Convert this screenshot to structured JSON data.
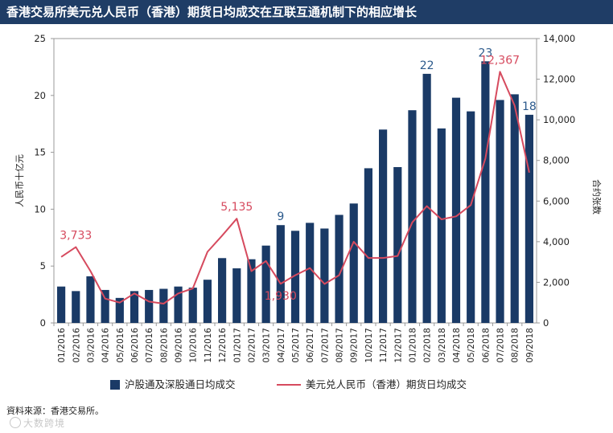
{
  "title": "香港交易所美元兑人民币（香港）期货日均成交在互联互通机制下的相应增长",
  "source_note": "資料來源：香港交易所。",
  "watermark": "大数跨境",
  "colors": {
    "title_bg": "#1f3d66",
    "bar": "#1a3a66",
    "line": "#d64a5e",
    "bar_label": "#2c5a8c",
    "line_label": "#d64a5e"
  },
  "chart_data": {
    "type": "bar",
    "categories": [
      "01/2016",
      "02/2016",
      "03/2016",
      "04/2016",
      "05/2016",
      "06/2016",
      "07/2016",
      "08/2016",
      "09/2016",
      "10/2016",
      "11/2016",
      "12/2016",
      "01/2017",
      "02/2017",
      "03/2017",
      "04/2017",
      "05/2017",
      "06/2017",
      "07/2017",
      "08/2017",
      "09/2017",
      "10/2017",
      "11/2017",
      "12/2017",
      "01/2018",
      "02/2018",
      "03/2018",
      "04/2018",
      "05/2018",
      "06/2018",
      "07/2018",
      "08/2018",
      "09/2018"
    ],
    "series": [
      {
        "name": "沪股通及深股通日均成交",
        "kind": "bar",
        "axis": "left",
        "values": [
          3.2,
          2.8,
          4.1,
          2.9,
          2.2,
          2.8,
          2.9,
          3.0,
          3.2,
          3.1,
          3.8,
          5.7,
          4.8,
          5.6,
          6.8,
          8.6,
          8.1,
          8.8,
          8.3,
          9.5,
          10.5,
          13.6,
          17.0,
          13.7,
          18.7,
          21.9,
          17.1,
          19.8,
          18.6,
          23.0,
          19.6,
          20.1,
          18.3
        ]
      },
      {
        "name": "美元兑人民币（香港）期货日均成交",
        "kind": "line",
        "axis": "right",
        "values": [
          3250,
          3733,
          2550,
          1200,
          1000,
          1450,
          1050,
          950,
          1450,
          1700,
          3500,
          4300,
          5135,
          2550,
          3050,
          1930,
          2350,
          2700,
          1920,
          2350,
          4000,
          3200,
          3200,
          3300,
          4950,
          5750,
          5100,
          5250,
          5800,
          8100,
          12367,
          10700,
          7400
        ]
      }
    ],
    "bar_labels": [
      {
        "index": 15,
        "text": "9"
      },
      {
        "index": 25,
        "text": "22"
      },
      {
        "index": 29,
        "text": "23"
      },
      {
        "index": 32,
        "text": "18"
      }
    ],
    "line_labels": [
      {
        "index": 1,
        "text": "3,733"
      },
      {
        "index": 12,
        "text": "5,135"
      },
      {
        "index": 15,
        "text": "1,930"
      },
      {
        "index": 30,
        "text": "12,367"
      }
    ],
    "y_left": {
      "label": "人民币十亿元",
      "min": 0,
      "max": 25,
      "ticks": [
        "0",
        "5",
        "10",
        "15",
        "20",
        "25"
      ]
    },
    "y_right": {
      "label": "合约张数",
      "min": 0,
      "max": 14000,
      "ticks": [
        "0",
        "2,000",
        "4,000",
        "6,000",
        "8,000",
        "10,000",
        "12,000",
        "14,000"
      ]
    },
    "legend": [
      "沪股通及深股通日均成交",
      "美元兑人民币（香港）期货日均成交"
    ],
    "legend_position": "bottom"
  }
}
